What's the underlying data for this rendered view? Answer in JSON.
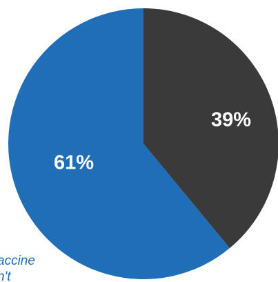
{
  "chart_data": {
    "type": "pie",
    "title": "",
    "start": "top",
    "direction": "clockwise",
    "slices": [
      {
        "label": "39%",
        "value": 39,
        "color": "#3a3a3a"
      },
      {
        "label": "61%",
        "value": 61,
        "color": "#1f6eb7"
      }
    ],
    "annotation": {
      "lines": [
        "accine",
        "n't"
      ],
      "color": "#1f6eb7",
      "style": "italic, clipped at left and bottom edges"
    }
  }
}
